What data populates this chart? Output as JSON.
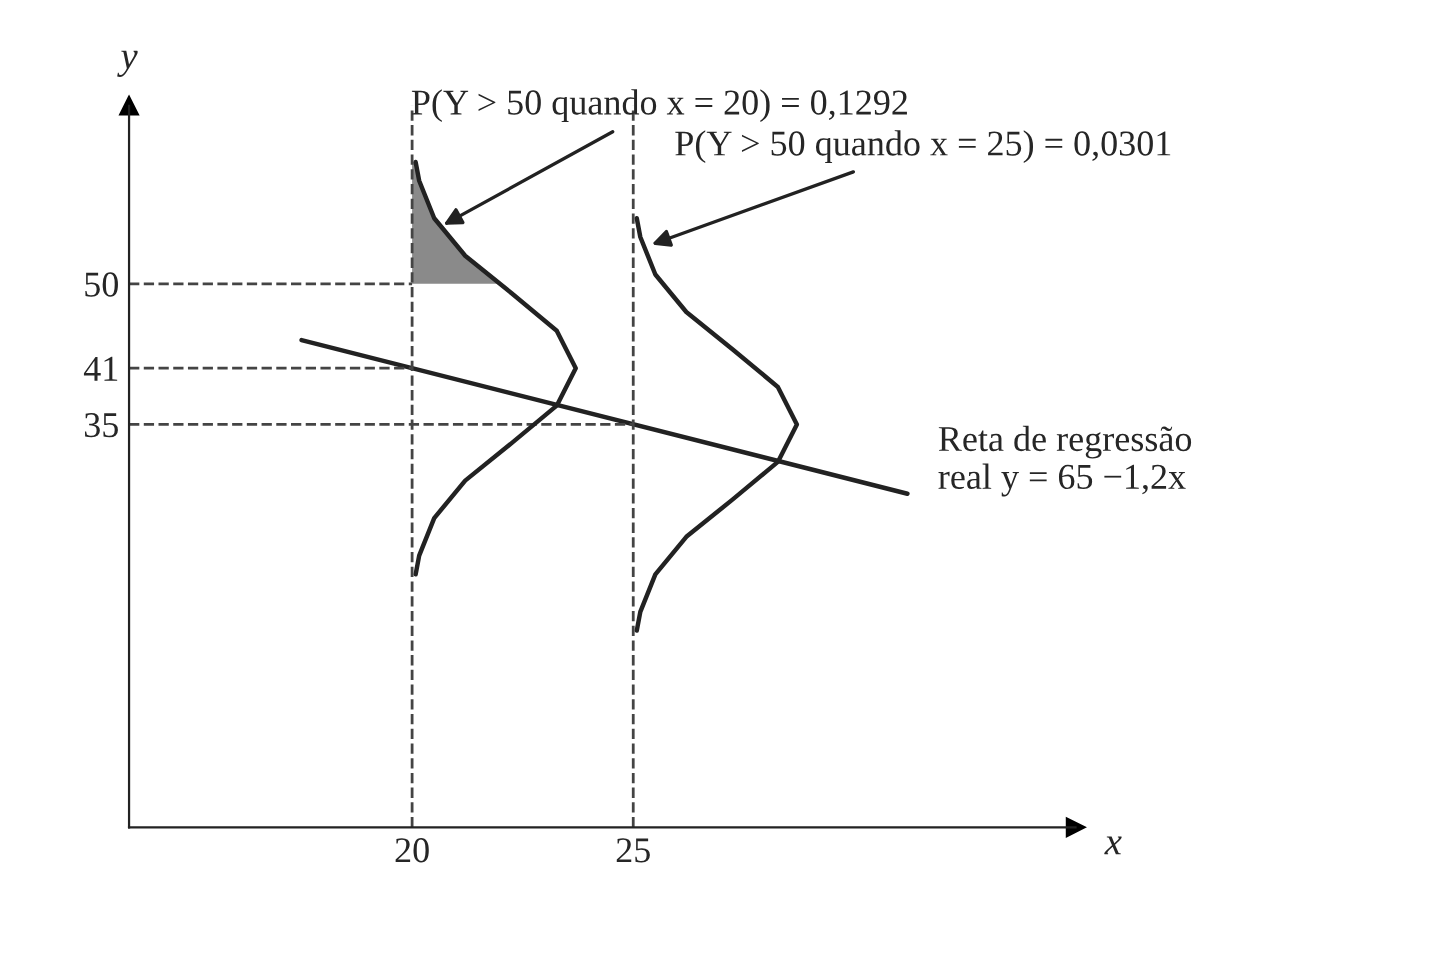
{
  "chart_data": {
    "type": "line",
    "xlabel": "x",
    "ylabel": "y",
    "xlim": [
      13.6,
      35
    ],
    "ylim": [
      -8,
      69
    ],
    "xticks": [
      20,
      25
    ],
    "yticks": [
      35,
      41,
      50
    ],
    "grid": false,
    "legend": false,
    "series": [
      {
        "color": "#222222",
        "x": [
          17.5,
          31.2
        ],
        "values": [
          44,
          27.6
        ]
      },
      {
        "color": "#444444",
        "line_style": "dashed",
        "x": [
          13.6,
          20
        ],
        "values": [
          50,
          50
        ]
      },
      {
        "color": "#444444",
        "line_style": "dashed",
        "x": [
          13.6,
          20
        ],
        "values": [
          41,
          41
        ]
      },
      {
        "color": "#444444",
        "line_style": "dashed",
        "x": [
          13.6,
          25
        ],
        "values": [
          35,
          35
        ]
      },
      {
        "color": "#222222",
        "x": [
          20.08,
          20.16,
          20.5,
          21.2,
          22.25,
          23.27,
          23.7,
          23.27,
          22.25,
          21.2,
          20.5,
          20.16,
          20.08
        ],
        "values": [
          19,
          21,
          25,
          29,
          33,
          37,
          41,
          45,
          49,
          53,
          57,
          61,
          63
        ]
      },
      {
        "color": "#222222",
        "x": [
          25.08,
          25.16,
          25.5,
          26.2,
          27.25,
          28.27,
          28.7,
          28.27,
          27.25,
          26.2,
          25.5,
          25.16,
          25.08
        ],
        "values": [
          13,
          15,
          19,
          23,
          27,
          31,
          35,
          39,
          43,
          47,
          51,
          55,
          57
        ]
      },
      {
        "type": "area",
        "color": "#8a8a8a",
        "x": [
          20,
          21.96,
          21.2,
          20.5,
          20.16,
          20.08,
          20
        ],
        "values": [
          50,
          50,
          53,
          57,
          61,
          63,
          63
        ]
      }
    ],
    "ref_lines": [
      {
        "axis": "x",
        "value": 20,
        "line_style": "dashed"
      },
      {
        "axis": "x",
        "value": 25,
        "line_style": "dashed"
      }
    ],
    "annotations": [
      {
        "text": "P(Y > 50 quando x = 20) = 0,1292",
        "x": 20.6,
        "y": 56
      },
      {
        "text": "P(Y > 50 quando x = 25) = 0,0301",
        "x": 25.3,
        "y": 54
      },
      {
        "text": "Reta de regressão\nreal y = 65 −1,2x",
        "x": 29.5,
        "y": 29.6
      }
    ]
  }
}
